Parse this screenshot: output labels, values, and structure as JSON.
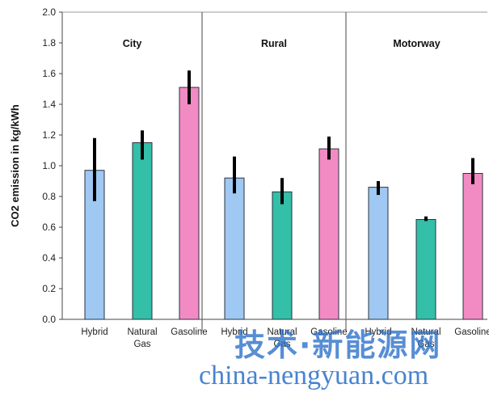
{
  "chart_data": {
    "type": "bar",
    "ylabel": "CO2 emission in kg/kWh",
    "ylim": [
      0,
      2.0
    ],
    "yticks": [
      "0.0",
      "0.2",
      "0.4",
      "0.6",
      "0.8",
      "1.0",
      "1.2",
      "1.4",
      "1.6",
      "1.8",
      "2.0"
    ],
    "grid": false,
    "panels": [
      {
        "title": "City",
        "categories": [
          "Hybrid",
          "Natural Gas",
          "Gasoline"
        ],
        "values": [
          0.97,
          1.15,
          1.51
        ],
        "error_low": [
          0.77,
          1.04,
          1.4
        ],
        "error_high": [
          1.18,
          1.23,
          1.62
        ]
      },
      {
        "title": "Rural",
        "categories": [
          "Hybrid",
          "Natural Gas",
          "Gasoline"
        ],
        "values": [
          0.92,
          0.83,
          1.11
        ],
        "error_low": [
          0.82,
          0.75,
          1.04
        ],
        "error_high": [
          1.06,
          0.92,
          1.19
        ]
      },
      {
        "title": "Motorway",
        "categories": [
          "Hybrid",
          "Natural Gas",
          "Gasoline"
        ],
        "values": [
          0.86,
          0.65,
          0.95
        ],
        "error_low": [
          0.81,
          0.64,
          0.88
        ],
        "error_high": [
          0.9,
          0.67,
          1.05
        ]
      }
    ],
    "series_colors": [
      "#9fc8f2",
      "#33bfa8",
      "#f28bc4"
    ],
    "error_bar_color": "#000000"
  },
  "watermark": {
    "chinese": "技术·新能源网",
    "url": "china-nengyuan.com"
  }
}
